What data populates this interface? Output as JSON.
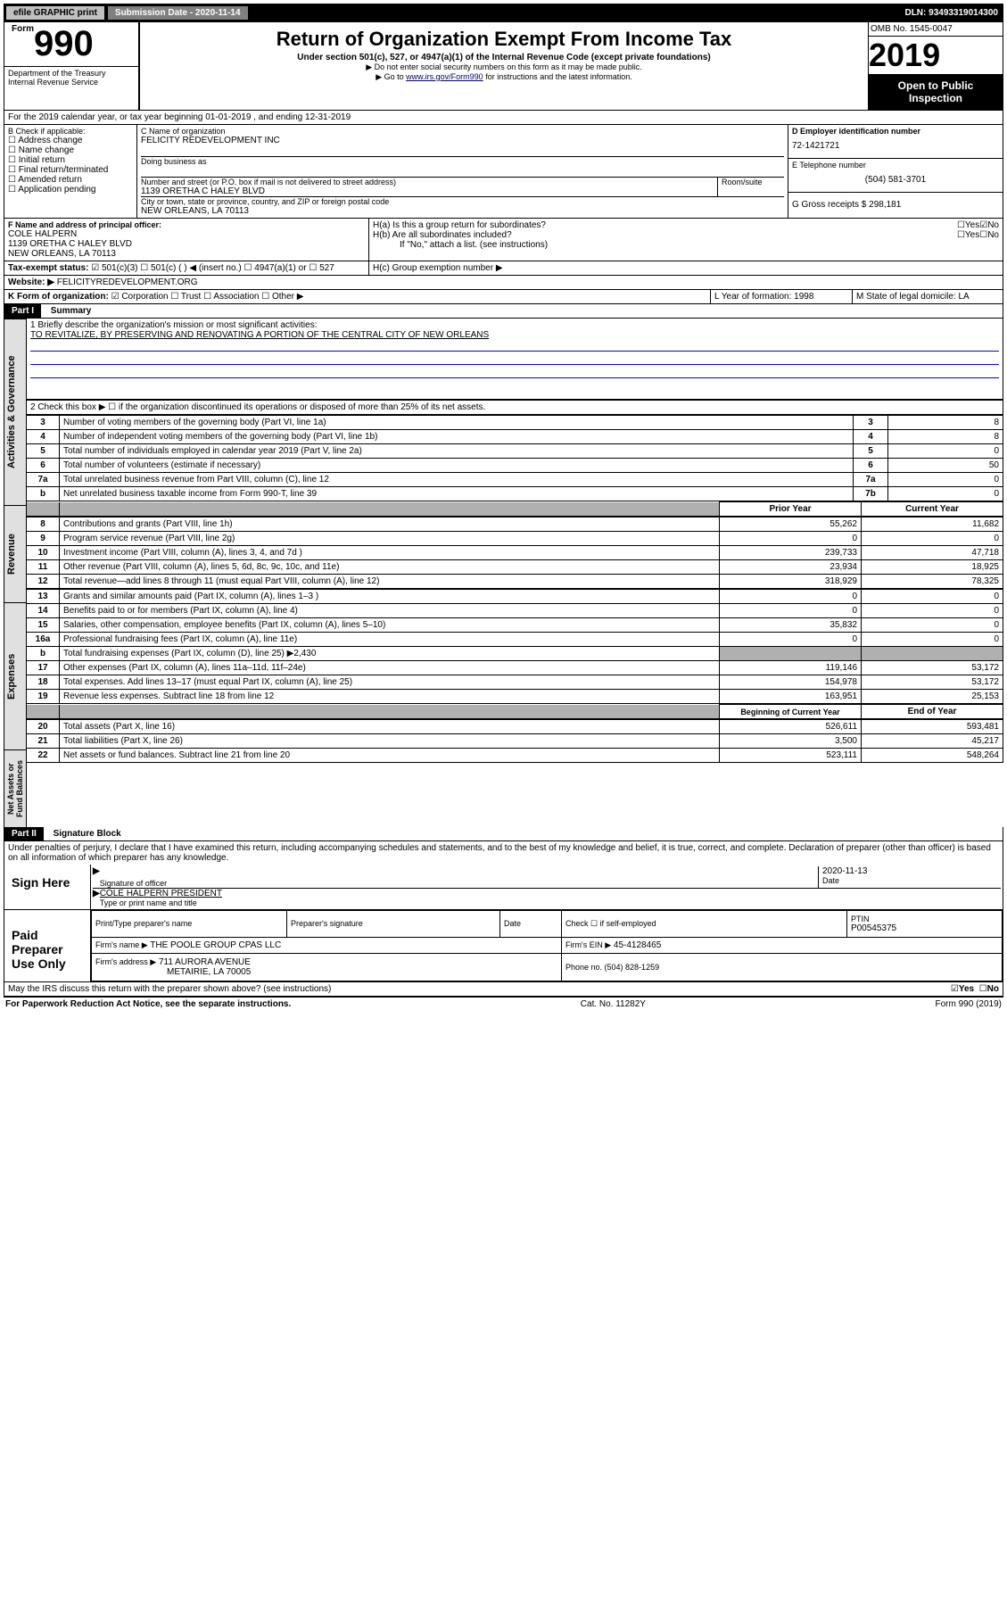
{
  "topbar": {
    "efile": "efile GRAPHIC print",
    "subdate_lbl": "Submission Date - 2020-11-14",
    "dln": "DLN: 93493319014300"
  },
  "header": {
    "form": "990",
    "form_prefix": "Form",
    "title": "Return of Organization Exempt From Income Tax",
    "sub1": "Under section 501(c), 527, or 4947(a)(1) of the Internal Revenue Code (except private foundations)",
    "sub2": "▶ Do not enter social security numbers on this form as it may be made public.",
    "sub3_pre": "▶ Go to ",
    "sub3_link": "www.irs.gov/Form990",
    "sub3_post": " for instructions and the latest information.",
    "dept": "Department of the Treasury\nInternal Revenue Service",
    "omb": "OMB No. 1545-0047",
    "year": "2019",
    "openpub": "Open to Public Inspection"
  },
  "A": {
    "text": "For the 2019 calendar year, or tax year beginning 01-01-2019   , and ending 12-31-2019"
  },
  "B": {
    "hdr": "B Check if applicable:",
    "opts": [
      "Address change",
      "Name change",
      "Initial return",
      "Final return/terminated",
      "Amended return",
      "Application pending"
    ]
  },
  "C": {
    "name_lbl": "C Name of organization",
    "name": "FELICITY REDEVELOPMENT INC",
    "dba_lbl": "Doing business as",
    "dba": "",
    "addr_lbl": "Number and street (or P.O. box if mail is not delivered to street address)",
    "room_lbl": "Room/suite",
    "addr": "1139 ORETHA C HALEY BLVD",
    "city_lbl": "City or town, state or province, country, and ZIP or foreign postal code",
    "city": "NEW ORLEANS, LA  70113"
  },
  "D": {
    "lbl": "D Employer identification number",
    "val": "72-1421721"
  },
  "E": {
    "lbl": "E Telephone number",
    "val": "(504) 581-3701"
  },
  "G": {
    "lbl": "G Gross receipts $ 298,181"
  },
  "F": {
    "lbl": "F  Name and address of principal officer:",
    "name": "COLE HALPERN",
    "addr1": "1139 ORETHA C HALEY BLVD",
    "addr2": "NEW ORLEANS, LA  70113"
  },
  "H": {
    "a": "H(a)  Is this a group return for subordinates?",
    "b": "H(b)  Are all subordinates included?",
    "note": "If \"No,\" attach a list. (see instructions)",
    "c": "H(c)  Group exemption number ▶",
    "yes": "Yes",
    "no": "No"
  },
  "I": {
    "lbl": "Tax-exempt status:",
    "o1": "501(c)(3)",
    "o2": "501(c) (  ) ◀ (insert no.)",
    "o3": "4947(a)(1) or",
    "o4": "527"
  },
  "J": {
    "lbl": "Website: ▶",
    "val": "FELICITYREDEVELOPMENT.ORG"
  },
  "K": {
    "lbl": "K Form of organization:",
    "o1": "Corporation",
    "o2": "Trust",
    "o3": "Association",
    "o4": "Other ▶"
  },
  "L": {
    "lbl": "L Year of formation: 1998"
  },
  "M": {
    "lbl": "M State of legal domicile: LA"
  },
  "part1": {
    "hdr": "Part I",
    "title": "Summary",
    "side_ag": "Activities & Governance",
    "side_rev": "Revenue",
    "side_exp": "Expenses",
    "side_net": "Net Assets or Fund Balances",
    "l1_lbl": "1  Briefly describe the organization's mission or most significant activities:",
    "l1_val": "TO REVITALIZE, BY PRESERVING AND RENOVATING A PORTION OF THE CENTRAL CITY OF NEW ORLEANS",
    "l2": "2    Check this box ▶ ☐  if the organization discontinued its operations or disposed of more than 25% of its net assets.",
    "rows_ag": [
      {
        "n": "3",
        "t": "Number of voting members of the governing body (Part VI, line 1a)",
        "b": "3",
        "v": "8"
      },
      {
        "n": "4",
        "t": "Number of independent voting members of the governing body (Part VI, line 1b)",
        "b": "4",
        "v": "8"
      },
      {
        "n": "5",
        "t": "Total number of individuals employed in calendar year 2019 (Part V, line 2a)",
        "b": "5",
        "v": "0"
      },
      {
        "n": "6",
        "t": "Total number of volunteers (estimate if necessary)",
        "b": "6",
        "v": "50"
      },
      {
        "n": "7a",
        "t": "Total unrelated business revenue from Part VIII, column (C), line 12",
        "b": "7a",
        "v": "0"
      },
      {
        "n": "b",
        "t": "Net unrelated business taxable income from Form 990-T, line 39",
        "b": "7b",
        "v": "0"
      }
    ],
    "col_py": "Prior Year",
    "col_cy": "Current Year",
    "rows_rev": [
      {
        "n": "8",
        "t": "Contributions and grants (Part VIII, line 1h)",
        "py": "55,262",
        "cy": "11,682"
      },
      {
        "n": "9",
        "t": "Program service revenue (Part VIII, line 2g)",
        "py": "0",
        "cy": "0"
      },
      {
        "n": "10",
        "t": "Investment income (Part VIII, column (A), lines 3, 4, and 7d )",
        "py": "239,733",
        "cy": "47,718"
      },
      {
        "n": "11",
        "t": "Other revenue (Part VIII, column (A), lines 5, 6d, 8c, 9c, 10c, and 11e)",
        "py": "23,934",
        "cy": "18,925"
      },
      {
        "n": "12",
        "t": "Total revenue—add lines 8 through 11 (must equal Part VIII, column (A), line 12)",
        "py": "318,929",
        "cy": "78,325"
      }
    ],
    "rows_exp": [
      {
        "n": "13",
        "t": "Grants and similar amounts paid (Part IX, column (A), lines 1–3 )",
        "py": "0",
        "cy": "0"
      },
      {
        "n": "14",
        "t": "Benefits paid to or for members (Part IX, column (A), line 4)",
        "py": "0",
        "cy": "0"
      },
      {
        "n": "15",
        "t": "Salaries, other compensation, employee benefits (Part IX, column (A), lines 5–10)",
        "py": "35,832",
        "cy": "0"
      },
      {
        "n": "16a",
        "t": "Professional fundraising fees (Part IX, column (A), line 11e)",
        "py": "0",
        "cy": "0"
      },
      {
        "n": "b",
        "t": "Total fundraising expenses (Part IX, column (D), line 25) ▶2,430",
        "py": "grey",
        "cy": "grey"
      },
      {
        "n": "17",
        "t": "Other expenses (Part IX, column (A), lines 11a–11d, 11f–24e)",
        "py": "119,146",
        "cy": "53,172"
      },
      {
        "n": "18",
        "t": "Total expenses. Add lines 13–17 (must equal Part IX, column (A), line 25)",
        "py": "154,978",
        "cy": "53,172"
      },
      {
        "n": "19",
        "t": "Revenue less expenses. Subtract line 18 from line 12",
        "py": "163,951",
        "cy": "25,153"
      }
    ],
    "col_bcy": "Beginning of Current Year",
    "col_eoy": "End of Year",
    "rows_net": [
      {
        "n": "20",
        "t": "Total assets (Part X, line 16)",
        "py": "526,611",
        "cy": "593,481"
      },
      {
        "n": "21",
        "t": "Total liabilities (Part X, line 26)",
        "py": "3,500",
        "cy": "45,217"
      },
      {
        "n": "22",
        "t": "Net assets or fund balances. Subtract line 21 from line 20",
        "py": "523,111",
        "cy": "548,264"
      }
    ]
  },
  "part2": {
    "hdr": "Part II",
    "title": "Signature Block",
    "decl": "Under penalties of perjury, I declare that I have examined this return, including accompanying schedules and statements, and to the best of my knowledge and belief, it is true, correct, and complete. Declaration of preparer (other than officer) is based on all information of which preparer has any knowledge.",
    "sign_here": "Sign Here",
    "sig_officer": "Signature of officer",
    "date": "2020-11-13",
    "date_lbl": "Date",
    "officer": "COLE HALPERN  PRESIDENT",
    "officer_lbl": "Type or print name and title",
    "paid": "Paid Preparer Use Only",
    "prep_name_lbl": "Print/Type preparer's name",
    "prep_sig_lbl": "Preparer's signature",
    "prep_date_lbl": "Date",
    "check_self": "Check ☐ if self-employed",
    "ptin_lbl": "PTIN",
    "ptin": "P00545375",
    "firm_name_lbl": "Firm's name    ▶",
    "firm_name": "THE POOLE GROUP CPAS LLC",
    "firm_ein_lbl": "Firm's EIN ▶",
    "firm_ein": "45-4128465",
    "firm_addr_lbl": "Firm's address ▶",
    "firm_addr1": "711 AURORA AVENUE",
    "firm_addr2": "METAIRIE, LA  70005",
    "phone_lbl": "Phone no. (504) 828-1259",
    "discuss": "May the IRS discuss this return with the preparer shown above? (see instructions)",
    "discuss_yes": "Yes",
    "discuss_no": "No"
  },
  "footer": {
    "pra": "For Paperwork Reduction Act Notice, see the separate instructions.",
    "cat": "Cat. No. 11282Y",
    "form": "Form 990 (2019)"
  }
}
